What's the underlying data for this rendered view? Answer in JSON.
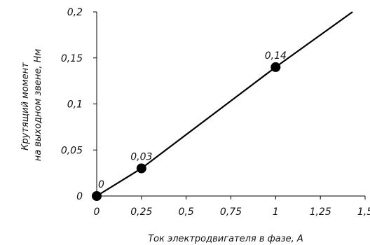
{
  "chart_data": {
    "type": "line",
    "xlabel": "Ток электродвигателя в фазе, А",
    "ylabel_lines": [
      "Крутящий момент",
      "на выходном звене, Нм"
    ],
    "xlim": [
      0,
      1.5
    ],
    "ylim": [
      0,
      0.2
    ],
    "x_ticks": [
      {
        "value": 0,
        "label": "0"
      },
      {
        "value": 0.25,
        "label": "0,25"
      },
      {
        "value": 0.5,
        "label": "0,5"
      },
      {
        "value": 0.75,
        "label": "0,75"
      },
      {
        "value": 1,
        "label": "1"
      },
      {
        "value": 1.25,
        "label": "1,25"
      },
      {
        "value": 1.5,
        "label": "1,5"
      }
    ],
    "y_ticks": [
      {
        "value": 0,
        "label": "0"
      },
      {
        "value": 0.05,
        "label": "0,05"
      },
      {
        "value": 0.1,
        "label": "0,1"
      },
      {
        "value": 0.15,
        "label": "0,15"
      },
      {
        "value": 0.2,
        "label": "0,2"
      }
    ],
    "grid": false,
    "series": [
      {
        "line_points": [
          {
            "x": 0,
            "y": 0
          },
          {
            "x": 0.25,
            "y": 0.03
          },
          {
            "x": 1,
            "y": 0.14
          },
          {
            "x": 1.43,
            "y": 0.2
          }
        ],
        "markers": [
          {
            "x": 0,
            "y": 0,
            "label": "0"
          },
          {
            "x": 0.25,
            "y": 0.03,
            "label": "0,03"
          },
          {
            "x": 1,
            "y": 0.14,
            "label": "0,14"
          }
        ],
        "color": "#000000"
      }
    ]
  }
}
